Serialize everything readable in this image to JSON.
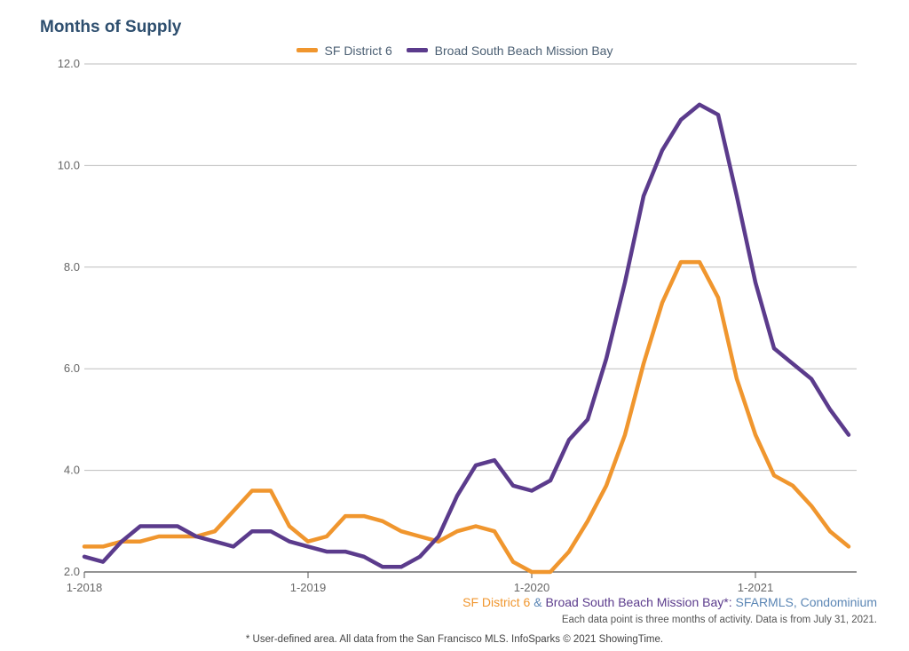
{
  "chart_data": {
    "type": "line",
    "title": "Months of Supply",
    "xlabel": "",
    "ylabel": "",
    "ylim": [
      2.0,
      12.0
    ],
    "yticks": [
      "2.0",
      "4.0",
      "6.0",
      "8.0",
      "10.0",
      "12.0"
    ],
    "xticks": [
      "1-2018",
      "1-2019",
      "1-2020",
      "1-2021"
    ],
    "x_start": "1-2018",
    "grid": true,
    "legend_position": "top-center",
    "series": [
      {
        "name": "SF District 6",
        "color": "#f0962e",
        "values": [
          2.5,
          2.5,
          2.6,
          2.6,
          2.7,
          2.7,
          2.7,
          2.8,
          3.2,
          3.6,
          3.6,
          2.9,
          2.6,
          2.7,
          3.1,
          3.1,
          3.0,
          2.8,
          2.7,
          2.6,
          2.8,
          2.9,
          2.8,
          2.2,
          2.0,
          2.0,
          2.4,
          3.0,
          3.7,
          4.7,
          6.1,
          7.3,
          8.1,
          8.1,
          7.4,
          5.8,
          4.7,
          3.9,
          3.7,
          3.3,
          2.8,
          2.5
        ]
      },
      {
        "name": "Broad South Beach Mission Bay",
        "color": "#5b3b8c",
        "values": [
          2.3,
          2.2,
          2.6,
          2.9,
          2.9,
          2.9,
          2.7,
          2.6,
          2.5,
          2.8,
          2.8,
          2.6,
          2.5,
          2.4,
          2.4,
          2.3,
          2.1,
          2.1,
          2.3,
          2.7,
          3.5,
          4.1,
          4.2,
          3.7,
          3.6,
          3.8,
          4.6,
          5.0,
          6.2,
          7.7,
          9.4,
          10.3,
          10.9,
          11.2,
          11.0,
          9.4,
          7.7,
          6.4,
          6.1,
          5.8,
          5.2,
          4.7
        ]
      }
    ]
  },
  "source_line": {
    "part1": "SF District 6",
    "part2": " & ",
    "part3": "Broad South Beach Mission Bay",
    "part4": "*: ",
    "part5": "SFARMLS, Condominium"
  },
  "note": "Each data point is three months of activity. Data is from July 31, 2021.",
  "footer": "* User-defined area. All data from the San Francisco MLS. InfoSparks © 2021 ShowingTime.",
  "colors": {
    "orange": "#f0962e",
    "purple": "#5b3b8c",
    "blue": "#5b86b5"
  }
}
